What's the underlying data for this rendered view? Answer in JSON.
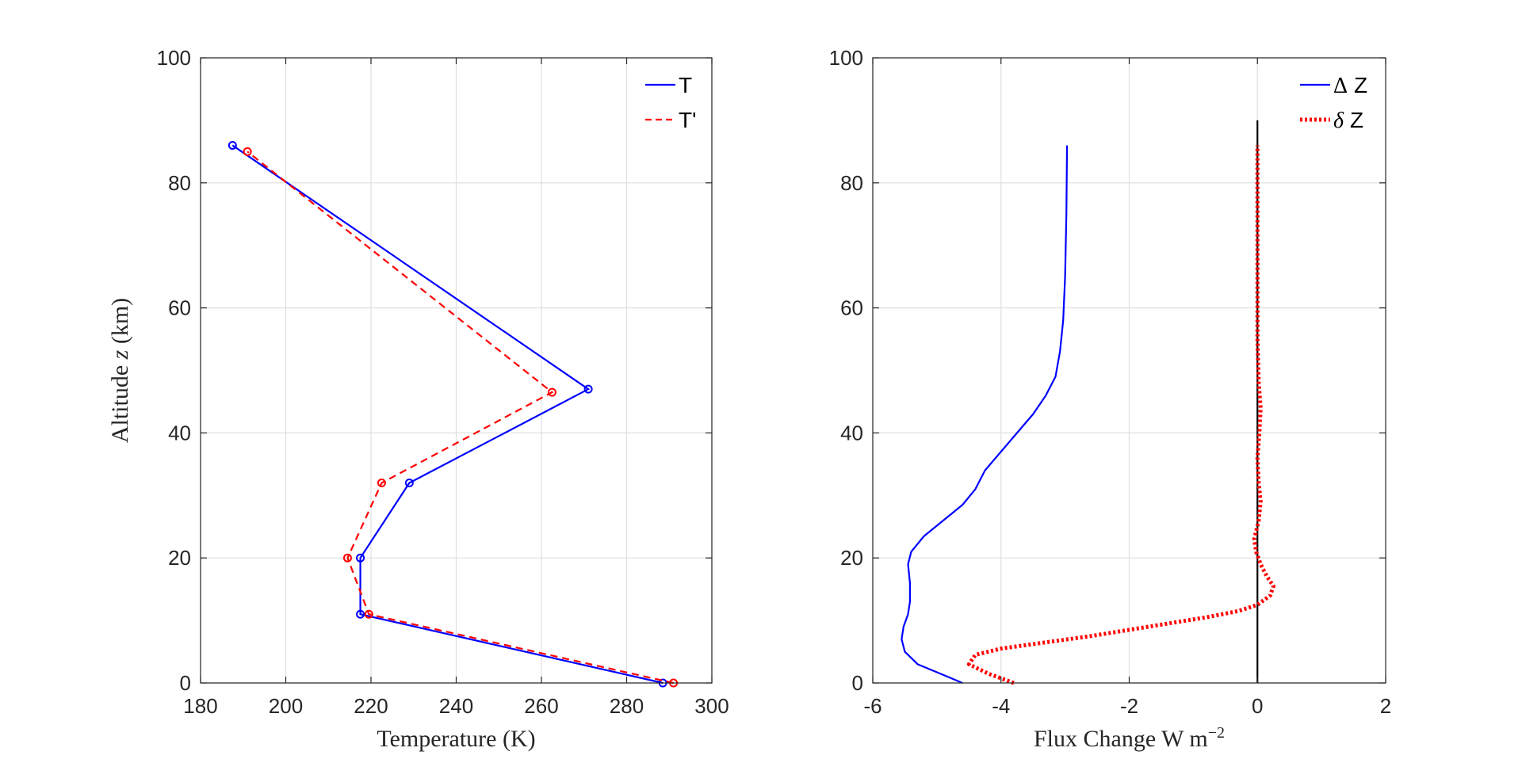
{
  "chart_data": [
    {
      "type": "line",
      "xlabel": "Temperature (K)",
      "ylabel_prefix": "Altitude ",
      "ylabel_var": "z",
      "ylabel_suffix": " (km)",
      "xlim": [
        180,
        300
      ],
      "ylim": [
        0,
        100
      ],
      "xticks": [
        180,
        200,
        220,
        240,
        260,
        280,
        300
      ],
      "yticks": [
        0,
        20,
        40,
        60,
        80,
        100
      ],
      "grid": true,
      "legend_position": "top-right",
      "series": [
        {
          "name": "T",
          "color": "#0000ff",
          "style": "solid-with-circles",
          "points": [
            [
              288.5,
              0
            ],
            [
              217.5,
              11
            ],
            [
              217.5,
              20
            ],
            [
              229,
              32
            ],
            [
              271,
              47
            ],
            [
              187.5,
              86
            ]
          ]
        },
        {
          "name": "T'",
          "color": "#ff0000",
          "style": "dashed-with-circles",
          "points": [
            [
              291,
              0
            ],
            [
              219.5,
              11
            ],
            [
              214.5,
              20
            ],
            [
              222.5,
              32
            ],
            [
              262.5,
              46.5
            ],
            [
              191,
              85
            ]
          ]
        }
      ]
    },
    {
      "type": "line",
      "xlabel_prefix": "Flux Change W m",
      "xlabel_exp": "−2",
      "xlim": [
        -6,
        2
      ],
      "ylim": [
        0,
        100
      ],
      "xticks": [
        -6,
        -4,
        -2,
        0,
        2
      ],
      "yticks": [
        0,
        20,
        40,
        60,
        80,
        100
      ],
      "grid": true,
      "legend_position": "top-right",
      "series": [
        {
          "name": "Z",
          "name_prefix": "Δ",
          "color": "#0000ff",
          "style": "solid",
          "points": [
            [
              -4.6,
              0
            ],
            [
              -4.95,
              1.5
            ],
            [
              -5.3,
              3
            ],
            [
              -5.5,
              5
            ],
            [
              -5.55,
              7
            ],
            [
              -5.52,
              9
            ],
            [
              -5.45,
              11
            ],
            [
              -5.42,
              13
            ],
            [
              -5.42,
              16
            ],
            [
              -5.45,
              19
            ],
            [
              -5.4,
              21
            ],
            [
              -5.2,
              23.5
            ],
            [
              -4.9,
              26
            ],
            [
              -4.6,
              28.5
            ],
            [
              -4.4,
              31
            ],
            [
              -4.25,
              34
            ],
            [
              -4.0,
              37
            ],
            [
              -3.75,
              40
            ],
            [
              -3.5,
              43
            ],
            [
              -3.3,
              46
            ],
            [
              -3.15,
              49
            ],
            [
              -3.08,
              53
            ],
            [
              -3.03,
              58
            ],
            [
              -3.0,
              65
            ],
            [
              -2.98,
              75
            ],
            [
              -2.97,
              86
            ]
          ]
        },
        {
          "name": "Z",
          "name_prefix": "δ",
          "color": "#ff0000",
          "style": "dotted",
          "points": [
            [
              -3.8,
              0
            ],
            [
              -4.2,
              1.5
            ],
            [
              -4.5,
              3
            ],
            [
              -4.4,
              4.5
            ],
            [
              -4.0,
              5.5
            ],
            [
              -3.3,
              6.5
            ],
            [
              -2.6,
              7.5
            ],
            [
              -2.0,
              8.5
            ],
            [
              -1.4,
              9.5
            ],
            [
              -0.8,
              10.5
            ],
            [
              -0.3,
              11.5
            ],
            [
              0.0,
              12.5
            ],
            [
              0.2,
              14
            ],
            [
              0.25,
              15.5
            ],
            [
              0.15,
              17
            ],
            [
              0.05,
              19
            ],
            [
              -0.02,
              21
            ],
            [
              -0.05,
              23
            ],
            [
              0.02,
              26
            ],
            [
              0.05,
              29
            ],
            [
              0.02,
              32
            ],
            [
              0.0,
              36
            ],
            [
              0.03,
              40
            ],
            [
              0.05,
              44
            ],
            [
              0.02,
              48
            ],
            [
              0.0,
              55
            ],
            [
              0.0,
              70
            ],
            [
              0.0,
              86
            ]
          ]
        }
      ],
      "reference_line": {
        "x": 0,
        "y_range": [
          0,
          90
        ],
        "color": "#000000"
      }
    }
  ]
}
